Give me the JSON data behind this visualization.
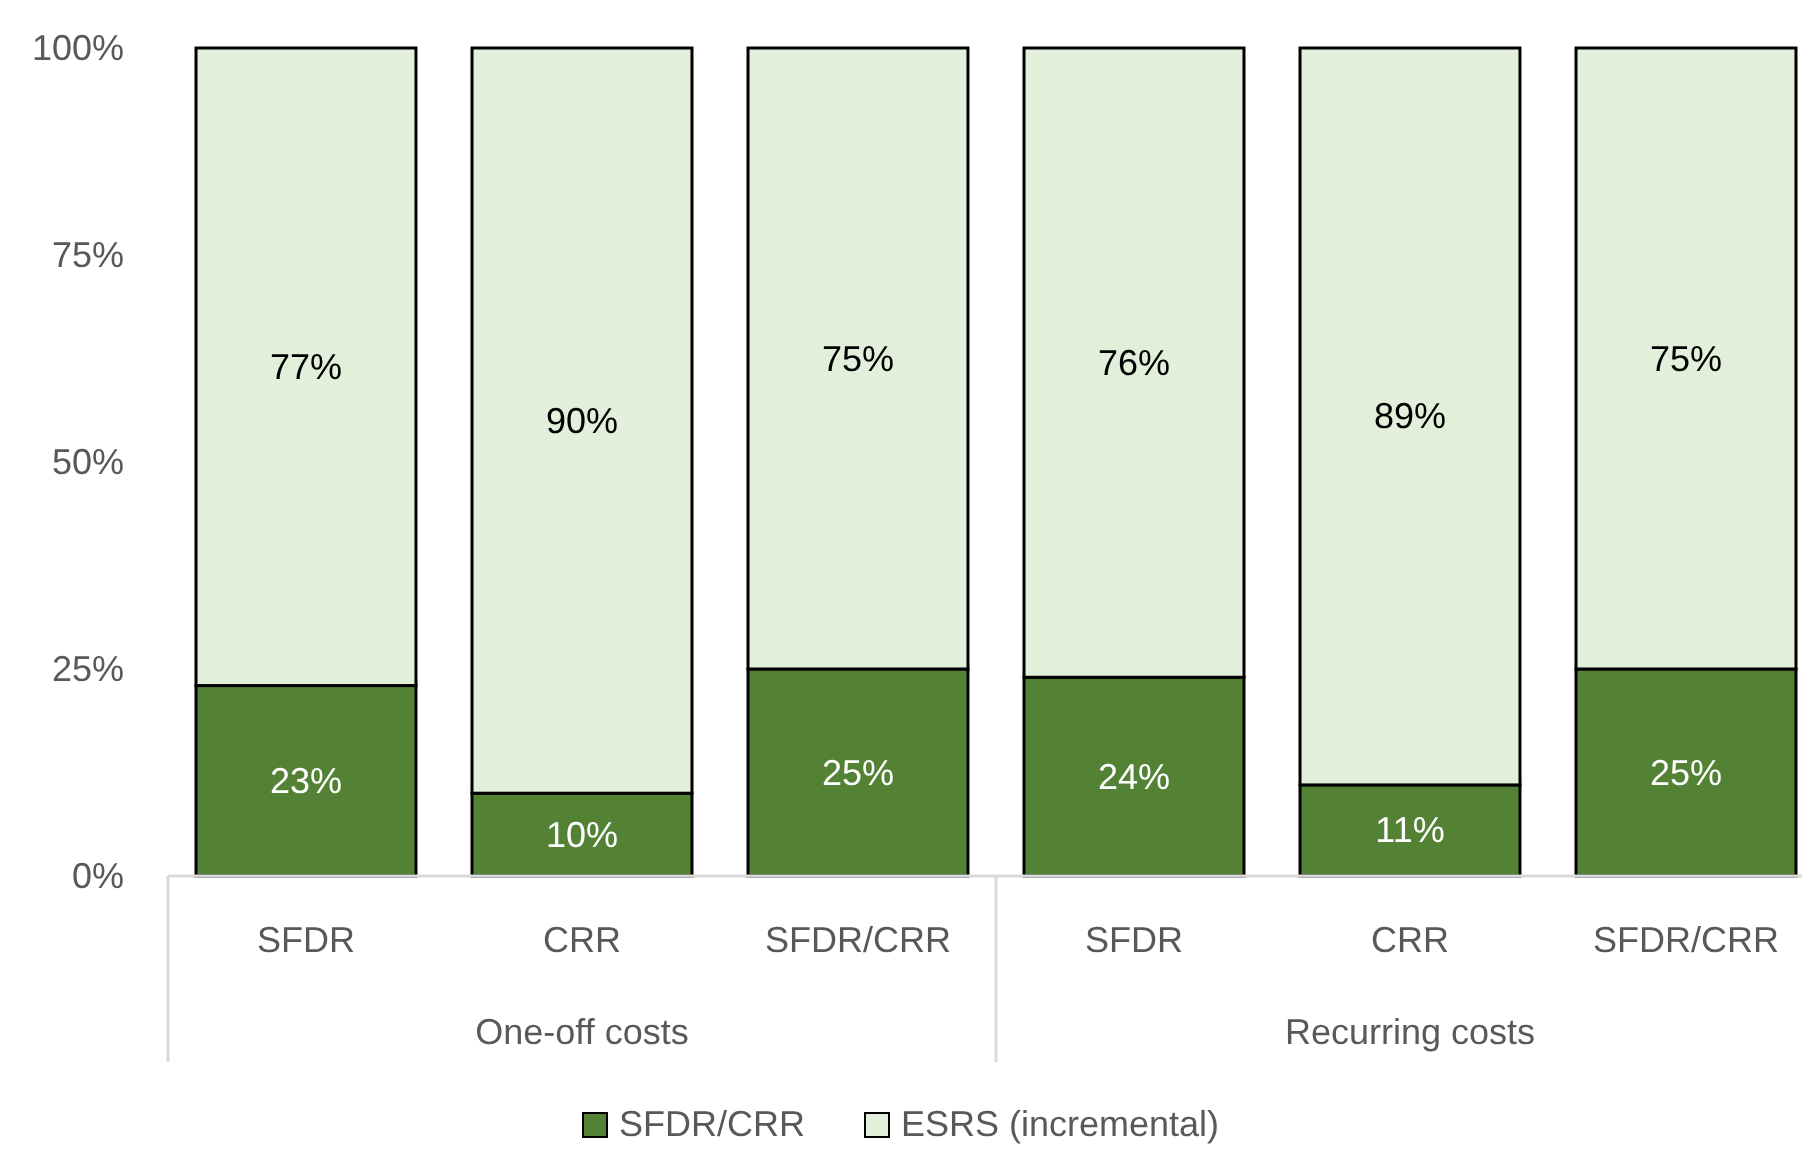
{
  "chart_data": {
    "type": "bar",
    "stacked": true,
    "categories": [
      "SFDR",
      "CRR",
      "SFDR/CRR",
      "SFDR",
      "CRR",
      "SFDR/CRR"
    ],
    "series": [
      {
        "name": "SFDR/CRR",
        "color": "#548235",
        "values": [
          23,
          10,
          25,
          24,
          11,
          25
        ],
        "value_labels": [
          "23%",
          "10%",
          "25%",
          "24%",
          "11%",
          "25%"
        ]
      },
      {
        "name": "ESRS (incremental)",
        "color": "#e2efda",
        "values": [
          77,
          90,
          75,
          76,
          89,
          75
        ],
        "value_labels": [
          "77%",
          "90%",
          "75%",
          "76%",
          "89%",
          "75%"
        ]
      }
    ],
    "ylim": [
      0,
      100
    ],
    "yticks": [
      {
        "value": 0,
        "label": "0%"
      },
      {
        "value": 25,
        "label": "25%"
      },
      {
        "value": 50,
        "label": "50%"
      },
      {
        "value": 75,
        "label": "75%"
      },
      {
        "value": 100,
        "label": "100%"
      }
    ],
    "annotations": [
      "One-off costs",
      "Recurring costs"
    ],
    "legend": "bottom"
  }
}
